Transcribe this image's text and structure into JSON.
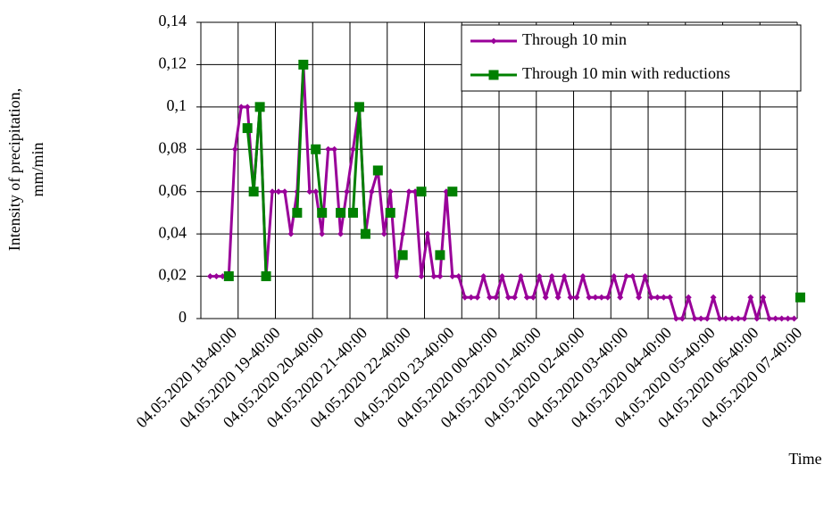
{
  "chart_data": {
    "type": "line",
    "y_label": [
      "Intensity of precipitation,",
      "mm/min"
    ],
    "x_label": "Time",
    "categories": [
      null,
      null,
      null,
      null,
      null,
      "04.05.2020 18-40:00",
      null,
      null,
      null,
      null,
      null,
      null,
      "04.05.2020 19-40:00",
      null,
      null,
      null,
      null,
      null,
      null,
      "04.05.2020 20-40:00",
      null,
      null,
      null,
      null,
      null,
      null,
      "04.05.2020 21-40:00",
      null,
      null,
      null,
      null,
      null,
      null,
      "04.05.2020 22-40:00",
      null,
      null,
      null,
      null,
      null,
      null,
      "04.05.2020 23-40:00",
      null,
      null,
      null,
      null,
      null,
      null,
      "04.05.2020 00-40:00",
      null,
      null,
      null,
      null,
      null,
      null,
      "04.05.2020 01-40:00",
      null,
      null,
      null,
      null,
      null,
      null,
      "04.05.2020 02-40:00",
      null,
      null,
      null,
      null,
      null,
      null,
      "04.05.2020 03-40:00",
      null,
      null,
      null,
      null,
      null,
      null,
      "04.05.2020 04-40:00",
      null,
      null,
      null,
      null,
      null,
      null,
      "04.05.2020 05-40:00",
      null,
      null,
      null,
      null,
      null,
      null,
      "04.05.2020 06-40:00",
      null,
      null,
      null,
      null,
      null,
      null,
      "04.05.2020 07-40:00"
    ],
    "series": [
      {
        "name": "Through 10 min",
        "color": "#990099",
        "marker": "diamond",
        "values": [
          null,
          0.02,
          0.02,
          0.02,
          0.02,
          0.08,
          0.1,
          0.1,
          0.06,
          0.1,
          0.02,
          0.06,
          0.06,
          0.06,
          0.04,
          0.06,
          0.12,
          0.06,
          0.06,
          0.04,
          0.08,
          0.08,
          0.04,
          0.06,
          0.08,
          0.1,
          0.04,
          0.06,
          0.07,
          0.04,
          0.06,
          0.02,
          0.04,
          0.06,
          0.06,
          0.02,
          0.04,
          0.02,
          0.02,
          0.06,
          0.02,
          0.02,
          0.01,
          0.01,
          0.01,
          0.02,
          0.01,
          0.01,
          0.02,
          0.01,
          0.01,
          0.02,
          0.01,
          0.01,
          0.02,
          0.01,
          0.02,
          0.01,
          0.02,
          0.01,
          0.01,
          0.02,
          0.01,
          0.01,
          0.01,
          0.01,
          0.02,
          0.01,
          0.02,
          0.02,
          0.01,
          0.02,
          0.01,
          0.01,
          0.01,
          0.01,
          0,
          0,
          0.01,
          0,
          0,
          0,
          0.01,
          0,
          0,
          0,
          0,
          0,
          0.01,
          0,
          0.01,
          0,
          0,
          0,
          0,
          0,
          null
        ]
      },
      {
        "name": "Through 10 min with reductions",
        "color": "#008000",
        "marker": "square",
        "values": [
          null,
          null,
          null,
          null,
          0.02,
          null,
          null,
          0.09,
          0.06,
          0.1,
          0.02,
          null,
          null,
          null,
          null,
          0.05,
          0.12,
          null,
          0.08,
          0.05,
          null,
          null,
          0.05,
          null,
          0.05,
          0.1,
          0.04,
          null,
          0.07,
          null,
          0.05,
          null,
          0.03,
          null,
          null,
          0.06,
          null,
          null,
          0.03,
          null,
          0.06,
          null,
          null,
          null,
          null,
          null,
          null,
          null,
          null,
          null,
          null,
          null,
          null,
          null,
          null,
          null,
          null,
          null,
          null,
          null,
          null,
          null,
          null,
          null,
          null,
          null,
          null,
          null,
          null,
          null,
          null,
          null,
          null,
          null,
          null,
          null,
          null,
          null,
          null,
          null,
          null,
          null,
          null,
          null,
          null,
          null,
          null,
          null,
          null,
          null,
          null,
          null,
          null,
          null,
          null,
          null,
          0.01
        ]
      }
    ],
    "ylim": [
      0,
      0.14
    ],
    "yticks": [
      0,
      {
        "value": 0.02,
        "label": "0,02"
      },
      {
        "value": 0.04,
        "label": "0,04"
      },
      {
        "value": 0.06,
        "label": "0,06"
      },
      {
        "value": 0.08,
        "label": "0,08"
      },
      {
        "value": 0.1,
        "label": "0,1"
      },
      {
        "value": 0.12,
        "label": "0,12"
      },
      {
        "value": 0.14,
        "label": "0,14"
      }
    ],
    "grid": true,
    "legend": "top-right"
  }
}
